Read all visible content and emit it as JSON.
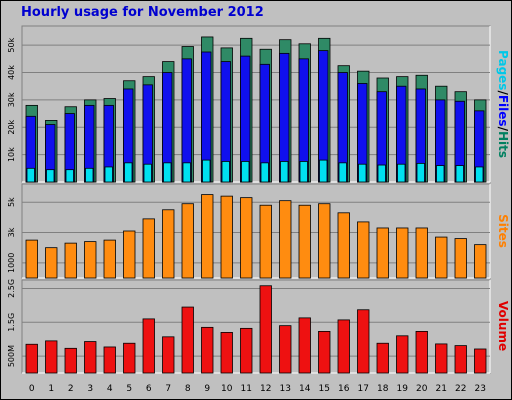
{
  "chart_data": [
    {
      "type": "bar",
      "title": "Hourly usage for November 2012",
      "ylabel_parts": [
        "Pages",
        "/",
        "Files",
        "/",
        "Hits"
      ],
      "label_colors": [
        "#00c8e8",
        "#000000",
        "#0000ff",
        "#000000",
        "#008060"
      ],
      "yticks": [
        "10k",
        "20k",
        "30k",
        "40k",
        "50k"
      ],
      "ytick_values": [
        10000,
        20000,
        30000,
        40000,
        50000
      ],
      "ylim": [
        0,
        57000
      ],
      "categories": [
        "0",
        "1",
        "2",
        "3",
        "4",
        "5",
        "6",
        "7",
        "8",
        "9",
        "10",
        "11",
        "12",
        "13",
        "14",
        "15",
        "16",
        "17",
        "18",
        "19",
        "20",
        "21",
        "22",
        "23"
      ],
      "series": [
        {
          "name": "Hits",
          "color": "#2f8a66",
          "values": [
            28000,
            22500,
            27500,
            30000,
            30500,
            37000,
            38500,
            44000,
            49500,
            53000,
            49000,
            52500,
            48500,
            52000,
            50500,
            52500,
            42500,
            40500,
            38000,
            38500,
            39000,
            35000,
            33000,
            30000
          ]
        },
        {
          "name": "Files",
          "color": "#1010ee",
          "values": [
            24000,
            21000,
            25000,
            28000,
            28000,
            34000,
            35500,
            40000,
            45000,
            47500,
            44000,
            46000,
            43000,
            47000,
            45000,
            48000,
            40000,
            36000,
            33000,
            35000,
            34000,
            30000,
            29500,
            26000
          ]
        },
        {
          "name": "Pages",
          "color": "#00e0f0",
          "values": [
            5000,
            4500,
            4500,
            5000,
            5500,
            7000,
            6500,
            7000,
            7000,
            8000,
            7500,
            7500,
            7000,
            7500,
            7500,
            8000,
            7000,
            6500,
            6200,
            6500,
            6800,
            6000,
            6000,
            5500
          ]
        }
      ]
    },
    {
      "type": "bar",
      "ylabel": "Sites",
      "label_color": "#ff8000",
      "yticks": [
        "1000",
        "3k",
        "5k"
      ],
      "ytick_values": [
        1000,
        3000,
        5000
      ],
      "ylim": [
        0,
        6200
      ],
      "categories": [
        "0",
        "1",
        "2",
        "3",
        "4",
        "5",
        "6",
        "7",
        "8",
        "9",
        "10",
        "11",
        "12",
        "13",
        "14",
        "15",
        "16",
        "17",
        "18",
        "19",
        "20",
        "21",
        "22",
        "23"
      ],
      "series": [
        {
          "name": "Sites",
          "color": "#ff8c10",
          "values": [
            2500,
            2000,
            2300,
            2400,
            2500,
            3100,
            3900,
            4500,
            4900,
            5500,
            5400,
            5300,
            4800,
            5100,
            4800,
            4900,
            4300,
            3700,
            3300,
            3300,
            3300,
            2700,
            2600,
            2200
          ]
        }
      ]
    },
    {
      "type": "bar",
      "ylabel": "Volume",
      "label_color": "#e00000",
      "yticks": [
        "500M",
        "1.5G",
        "2.5G"
      ],
      "ytick_values": [
        0.5,
        1.5,
        2.5
      ],
      "ylim": [
        0,
        2.75
      ],
      "categories": [
        "0",
        "1",
        "2",
        "3",
        "4",
        "5",
        "6",
        "7",
        "8",
        "9",
        "10",
        "11",
        "12",
        "13",
        "14",
        "15",
        "16",
        "17",
        "18",
        "19",
        "20",
        "21",
        "22",
        "23"
      ],
      "series": [
        {
          "name": "Volume",
          "color": "#ee1111",
          "values": [
            0.85,
            0.95,
            0.73,
            0.93,
            0.77,
            0.88,
            1.6,
            1.07,
            1.95,
            1.35,
            1.2,
            1.32,
            2.58,
            1.4,
            1.63,
            1.23,
            1.57,
            1.87,
            0.88,
            1.1,
            1.23,
            0.86,
            0.81,
            0.71
          ]
        }
      ]
    }
  ]
}
